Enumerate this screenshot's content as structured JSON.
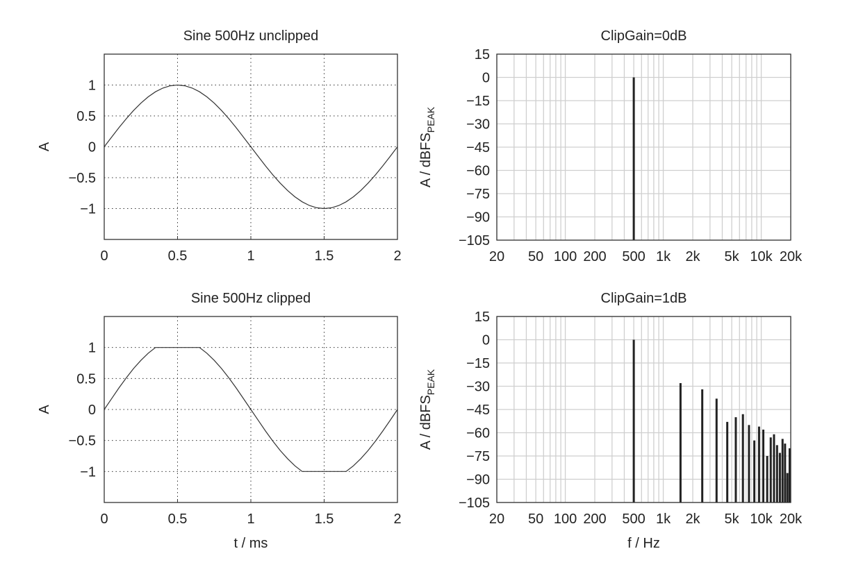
{
  "chart_data": [
    {
      "type": "line",
      "title": "Sine 500Hz unclipped",
      "xlabel": "",
      "ylabel": "A",
      "xlim": [
        0,
        2
      ],
      "ylim": [
        -1.5,
        1.5
      ],
      "xticks": [
        "0",
        "0.5",
        "1",
        "1.5",
        "2"
      ],
      "yticks": [
        "1",
        "0.5",
        "0",
        "−0.5",
        "−1"
      ],
      "grid": "dotted",
      "x": [
        0,
        0.05,
        0.1,
        0.15,
        0.2,
        0.25,
        0.3,
        0.35,
        0.4,
        0.45,
        0.5,
        0.55,
        0.6,
        0.65,
        0.7,
        0.75,
        0.8,
        0.85,
        0.9,
        0.95,
        1,
        1.05,
        1.1,
        1.15,
        1.2,
        1.25,
        1.3,
        1.35,
        1.4,
        1.45,
        1.5,
        1.55,
        1.6,
        1.65,
        1.7,
        1.75,
        1.8,
        1.85,
        1.9,
        1.95,
        2
      ],
      "y": [
        0,
        0.156,
        0.309,
        0.454,
        0.588,
        0.707,
        0.809,
        0.891,
        0.951,
        0.988,
        1,
        0.988,
        0.951,
        0.891,
        0.809,
        0.707,
        0.588,
        0.454,
        0.309,
        0.156,
        0,
        -0.156,
        -0.309,
        -0.454,
        -0.588,
        -0.707,
        -0.809,
        -0.891,
        -0.951,
        -0.988,
        -1,
        -0.988,
        -0.951,
        -0.891,
        -0.809,
        -0.707,
        -0.588,
        -0.454,
        -0.309,
        -0.156,
        0
      ]
    },
    {
      "type": "bar",
      "title": "ClipGain=0dB",
      "xlabel": "",
      "ylabel": "A / dBFS",
      "ylabel_sub": "PEAK",
      "xscale": "log",
      "xlim": [
        20,
        20000
      ],
      "ylim": [
        -105,
        15
      ],
      "xticks": [
        {
          "v": 20,
          "label": "20"
        },
        {
          "v": 50,
          "label": "50"
        },
        {
          "v": 100,
          "label": "100"
        },
        {
          "v": 200,
          "label": "200"
        },
        {
          "v": 500,
          "label": "500"
        },
        {
          "v": 1000,
          "label": "1k"
        },
        {
          "v": 2000,
          "label": "2k"
        },
        {
          "v": 5000,
          "label": "5k"
        },
        {
          "v": 10000,
          "label": "10k"
        },
        {
          "v": 20000,
          "label": "20k"
        }
      ],
      "yticks": [
        15,
        0,
        -15,
        -30,
        -45,
        -60,
        -75,
        -90,
        -105
      ],
      "grid": "solid",
      "x": [
        500
      ],
      "y": [
        0
      ]
    },
    {
      "type": "line",
      "title": "Sine 500Hz clipped",
      "xlabel": "t / ms",
      "ylabel": "A",
      "xlim": [
        0,
        2
      ],
      "ylim": [
        -1.5,
        1.5
      ],
      "xticks": [
        "0",
        "0.5",
        "1",
        "1.5",
        "2"
      ],
      "yticks": [
        "1",
        "0.5",
        "0",
        "−0.5",
        "−1"
      ],
      "grid": "dotted",
      "x": [
        0,
        0.05,
        0.1,
        0.15,
        0.2,
        0.25,
        0.3,
        0.35,
        0.4,
        0.45,
        0.5,
        0.55,
        0.6,
        0.65,
        0.7,
        0.75,
        0.8,
        0.85,
        0.9,
        0.95,
        1,
        1.05,
        1.1,
        1.15,
        1.2,
        1.25,
        1.3,
        1.35,
        1.4,
        1.45,
        1.5,
        1.55,
        1.6,
        1.65,
        1.7,
        1.75,
        1.8,
        1.85,
        1.9,
        1.95,
        2
      ],
      "y": [
        0,
        0.175,
        0.347,
        0.509,
        0.66,
        0.793,
        0.908,
        1,
        1,
        1,
        1,
        1,
        1,
        1,
        0.908,
        0.793,
        0.66,
        0.509,
        0.347,
        0.175,
        0,
        -0.175,
        -0.347,
        -0.509,
        -0.66,
        -0.793,
        -0.908,
        -1,
        -1,
        -1,
        -1,
        -1,
        -1,
        -1,
        -0.908,
        -0.793,
        -0.66,
        -0.509,
        -0.347,
        -0.175,
        0
      ]
    },
    {
      "type": "bar",
      "title": "ClipGain=1dB",
      "xlabel": "f / Hz",
      "ylabel": "A / dBFS",
      "ylabel_sub": "PEAK",
      "xscale": "log",
      "xlim": [
        20,
        20000
      ],
      "ylim": [
        -105,
        15
      ],
      "xticks": [
        {
          "v": 20,
          "label": "20"
        },
        {
          "v": 50,
          "label": "50"
        },
        {
          "v": 100,
          "label": "100"
        },
        {
          "v": 200,
          "label": "200"
        },
        {
          "v": 500,
          "label": "500"
        },
        {
          "v": 1000,
          "label": "1k"
        },
        {
          "v": 2000,
          "label": "2k"
        },
        {
          "v": 5000,
          "label": "5k"
        },
        {
          "v": 10000,
          "label": "10k"
        },
        {
          "v": 20000,
          "label": "20k"
        }
      ],
      "yticks": [
        15,
        0,
        -15,
        -30,
        -45,
        -60,
        -75,
        -90,
        -105
      ],
      "grid": "solid",
      "x": [
        500,
        1500,
        2500,
        3500,
        4500,
        5500,
        6500,
        7500,
        8500,
        9500,
        10500,
        11500,
        12500,
        13500,
        14500,
        15500,
        16500,
        17500,
        18500,
        19500
      ],
      "y": [
        0,
        -28,
        -32,
        -38,
        -53,
        -50,
        -48,
        -55,
        -65,
        -56,
        -58,
        -75,
        -63,
        -61,
        -68,
        -73,
        -64,
        -67,
        -86,
        -70
      ]
    }
  ]
}
